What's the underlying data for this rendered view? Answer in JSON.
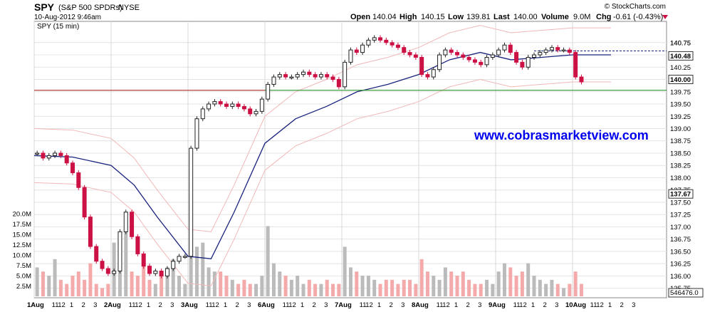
{
  "header": {
    "symbol": "SPY",
    "name": "(S&P 500 SPDRs)",
    "exchange": "NYSE",
    "datetime": "10-Aug-2012 9:46am",
    "credit": "© StockCharts.com",
    "stats": {
      "open_label": "Open",
      "open": "140.04",
      "high_label": "High",
      "high": "140.15",
      "low_label": "Low",
      "low": "139.81",
      "last_label": "Last",
      "last": "140.00",
      "volume_label": "Volume",
      "volume": "9.0M",
      "chg_label": "Chg",
      "chg": "-0.61 (-0.43%)"
    }
  },
  "panel_label": "SPY (15 min)",
  "watermark": "www.cobrasmarketview.com",
  "colors": {
    "up": "#222222",
    "down": "#cc1144",
    "ma": "#1a237e",
    "bb": "#f2b8b8",
    "hline_red": "#aa1111",
    "hline_green": "#118811",
    "watermark": "#0000ee",
    "vol_up": "#bbbbbb",
    "vol_down": "#f4aaaa"
  },
  "chart_data": {
    "type": "candlestick",
    "y_ticks": [
      "140.75",
      "140.50",
      "140.25",
      "140.00",
      "139.75",
      "139.50",
      "139.25",
      "139.00",
      "138.75",
      "138.50",
      "138.25",
      "138.00",
      "137.75",
      "137.50",
      "137.25",
      "137.00",
      "136.75",
      "136.50",
      "136.25",
      "136.00",
      "135.75"
    ],
    "ylim": [
      135.6,
      140.95
    ],
    "price_labels": [
      {
        "value": 140.75,
        "text": "140.75",
        "boxed": false
      },
      {
        "value": 140.48,
        "text": "140.48",
        "boxed": true
      },
      {
        "value": 140.0,
        "text": "140.00",
        "boxed": true
      },
      {
        "value": 137.67,
        "text": "137.67",
        "boxed": true
      }
    ],
    "hlines": [
      {
        "value": 139.78,
        "color": "red-to-green"
      },
      {
        "value": 140.58,
        "style": "dashed",
        "from_day": 6.5
      }
    ],
    "volume_ticks": [
      "20.0M",
      "17.5M",
      "15.0M",
      "12.5M",
      "10.0M",
      "7.5M",
      "5.0M",
      "2.5M"
    ],
    "volume_last": "546476.0",
    "x_day_labels": [
      "1Aug",
      "2Aug",
      "3Aug",
      "6Aug",
      "7Aug",
      "8Aug",
      "9Aug",
      "10Aug"
    ],
    "x_hour_labels": [
      "11",
      "12",
      "1",
      "2",
      "3"
    ],
    "day_path": [
      [
        [
          0,
          138.5
        ],
        [
          1,
          138.4
        ],
        [
          2,
          138.45
        ],
        [
          3,
          138.5
        ],
        [
          4,
          138.45
        ],
        [
          5,
          138.3
        ],
        [
          6,
          138.1
        ],
        [
          7,
          137.8
        ],
        [
          8,
          137.2
        ],
        [
          9,
          136.6
        ],
        [
          10,
          136.3
        ],
        [
          11,
          136.15
        ],
        [
          12,
          136.05
        ]
      ],
      [
        [
          0,
          136.1
        ],
        [
          1,
          136.9
        ],
        [
          2,
          137.3
        ],
        [
          3,
          136.8
        ],
        [
          4,
          136.45
        ],
        [
          5,
          136.2
        ],
        [
          6,
          136.05
        ],
        [
          7,
          136.1
        ],
        [
          8,
          136.0
        ],
        [
          9,
          136.15
        ],
        [
          10,
          136.3
        ],
        [
          11,
          136.4
        ],
        [
          12,
          136.4
        ]
      ],
      [
        [
          0,
          138.6
        ],
        [
          1,
          139.2
        ],
        [
          2,
          139.4
        ],
        [
          3,
          139.5
        ],
        [
          4,
          139.55
        ],
        [
          5,
          139.5
        ],
        [
          6,
          139.45
        ],
        [
          7,
          139.5
        ],
        [
          8,
          139.45
        ],
        [
          9,
          139.4
        ],
        [
          10,
          139.3
        ],
        [
          11,
          139.35
        ],
        [
          12,
          139.6
        ]
      ],
      [
        [
          0,
          139.9
        ],
        [
          1,
          140.05
        ],
        [
          2,
          140.1
        ],
        [
          3,
          140.05
        ],
        [
          4,
          140.05
        ],
        [
          5,
          140.1
        ],
        [
          6,
          140.15
        ],
        [
          7,
          140.1
        ],
        [
          8,
          140.05
        ],
        [
          9,
          140.1
        ],
        [
          10,
          140.05
        ],
        [
          11,
          140.0
        ],
        [
          12,
          139.85
        ]
      ],
      [
        [
          0,
          140.35
        ],
        [
          1,
          140.6
        ],
        [
          2,
          140.55
        ],
        [
          3,
          140.7
        ],
        [
          4,
          140.8
        ],
        [
          5,
          140.85
        ],
        [
          6,
          140.8
        ],
        [
          7,
          140.75
        ],
        [
          8,
          140.7
        ],
        [
          9,
          140.65
        ],
        [
          10,
          140.55
        ],
        [
          11,
          140.5
        ],
        [
          12,
          140.45
        ]
      ],
      [
        [
          0,
          140.1
        ],
        [
          1,
          140.05
        ],
        [
          2,
          140.2
        ],
        [
          3,
          140.5
        ],
        [
          4,
          140.6
        ],
        [
          5,
          140.55
        ],
        [
          6,
          140.5
        ],
        [
          7,
          140.45
        ],
        [
          8,
          140.4
        ],
        [
          9,
          140.35
        ],
        [
          10,
          140.3
        ],
        [
          11,
          140.45
        ],
        [
          12,
          140.5
        ]
      ],
      [
        [
          0,
          140.6
        ],
        [
          1,
          140.7
        ],
        [
          2,
          140.55
        ],
        [
          3,
          140.35
        ],
        [
          4,
          140.25
        ],
        [
          5,
          140.45
        ],
        [
          6,
          140.5
        ],
        [
          7,
          140.55
        ],
        [
          8,
          140.6
        ],
        [
          9,
          140.65
        ],
        [
          10,
          140.6
        ],
        [
          11,
          140.6
        ],
        [
          12,
          140.55
        ]
      ],
      [
        [
          0,
          140.05
        ],
        [
          1,
          139.95
        ]
      ]
    ],
    "ma_path": [
      [
        0,
        138.45
      ],
      [
        0.5,
        138.42
      ],
      [
        1,
        138.25
      ],
      [
        1.3,
        137.85
      ],
      [
        1.6,
        137.2
      ],
      [
        2,
        136.4
      ],
      [
        2.3,
        136.35
      ],
      [
        2.6,
        137.3
      ],
      [
        3,
        138.7
      ],
      [
        3.4,
        139.2
      ],
      [
        3.8,
        139.45
      ],
      [
        4.2,
        139.75
      ],
      [
        4.6,
        139.9
      ],
      [
        5,
        140.1
      ],
      [
        5.4,
        140.4
      ],
      [
        5.8,
        140.55
      ],
      [
        6.2,
        140.4
      ],
      [
        6.6,
        140.45
      ],
      [
        7,
        140.5
      ],
      [
        7.5,
        140.5
      ]
    ],
    "volume_by_day": [
      [
        7,
        6,
        5,
        9,
        4,
        3,
        5,
        6,
        4,
        8,
        3,
        2,
        3
      ],
      [
        13,
        9,
        16,
        6,
        5,
        8,
        4,
        3,
        6,
        7,
        9,
        5,
        3
      ],
      [
        10,
        12,
        13,
        7,
        6,
        6,
        5,
        4,
        3,
        4,
        3,
        3,
        5
      ],
      [
        17,
        8,
        6,
        5,
        4,
        5,
        3,
        4,
        3,
        3,
        4,
        3,
        3
      ],
      [
        12,
        7,
        6,
        5,
        5,
        4,
        3,
        4,
        4,
        3,
        4,
        4,
        3
      ],
      [
        9,
        6,
        5,
        4,
        7,
        6,
        5,
        6,
        4,
        3,
        3,
        4,
        3
      ],
      [
        6,
        8,
        7,
        5,
        6,
        8,
        5,
        4,
        3,
        4,
        3,
        2,
        3
      ],
      [
        6,
        3
      ]
    ]
  }
}
